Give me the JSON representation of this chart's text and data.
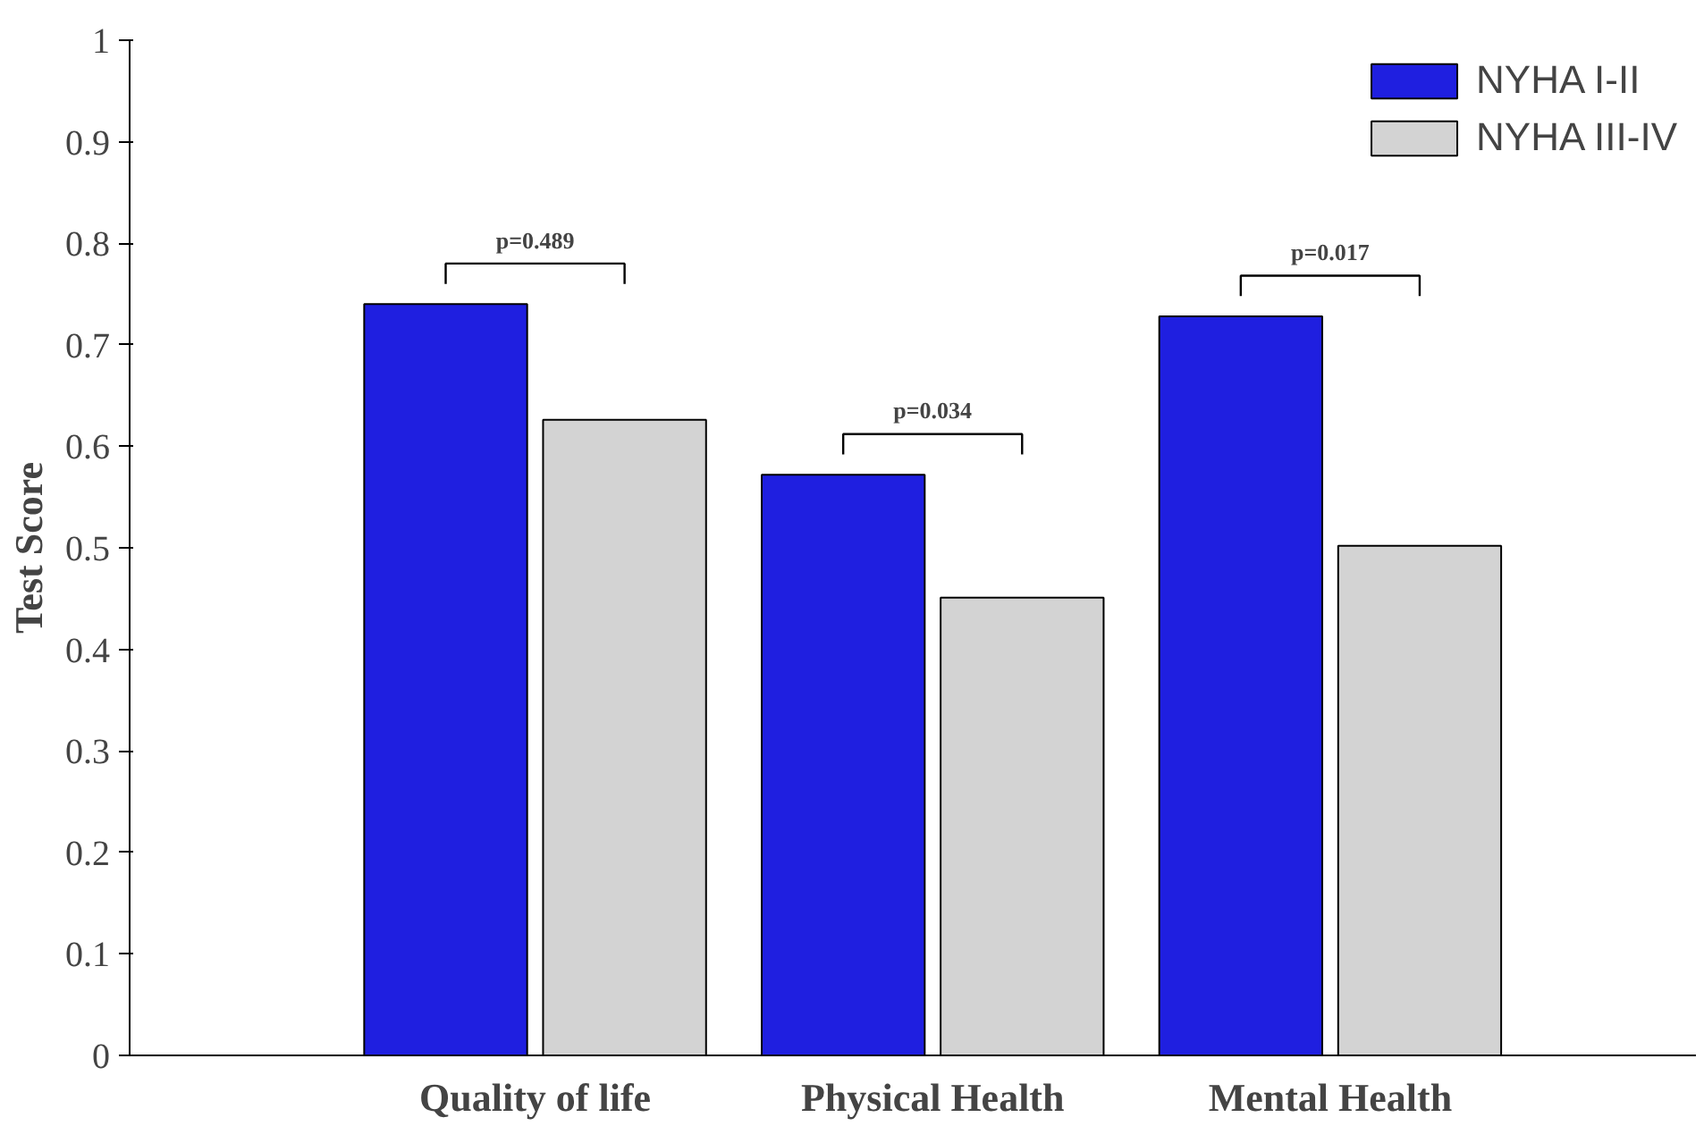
{
  "chart_data": {
    "type": "bar",
    "ylabel": "Test Score",
    "categories": [
      "Quality of life",
      "Physical Health",
      "Mental Health"
    ],
    "series": [
      {
        "name": "NYHA I-II",
        "color": "#1f1fe0",
        "values": [
          0.74,
          0.572,
          0.728
        ]
      },
      {
        "name": "NYHA III-IV",
        "color": "#d3d3d3",
        "values": [
          0.626,
          0.451,
          0.502
        ]
      }
    ],
    "ylim": [
      0,
      1
    ],
    "yticks": [
      0,
      0.1,
      0.2,
      0.3,
      0.4,
      0.5,
      0.6,
      0.7,
      0.8,
      0.9,
      1
    ],
    "grid": false,
    "legend": "top right",
    "annotations": [
      "p=0.489",
      "p=0.034",
      "p=0.017"
    ]
  }
}
